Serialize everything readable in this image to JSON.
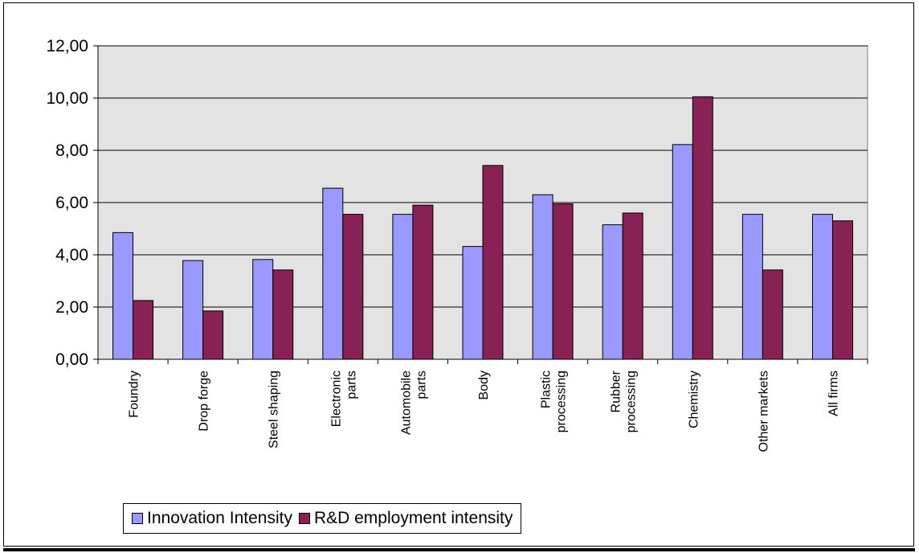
{
  "chart_data": {
    "type": "bar",
    "title": "",
    "xlabel": "",
    "ylabel": "",
    "ylim": [
      0,
      12
    ],
    "yticks": [
      "0,00",
      "2,00",
      "4,00",
      "6,00",
      "8,00",
      "10,00",
      "12,00"
    ],
    "ytick_values": [
      0,
      2,
      4,
      6,
      8,
      10,
      12
    ],
    "grid": true,
    "legend_position": "bottom-left",
    "categories": [
      [
        "Foundry"
      ],
      [
        "Drop forge"
      ],
      [
        "Steel shaping"
      ],
      [
        "Electronic",
        "parts"
      ],
      [
        "Automobile",
        "parts"
      ],
      [
        "Body"
      ],
      [
        "Plastic",
        "processing"
      ],
      [
        "Rubber",
        "processing"
      ],
      [
        "Chemistry"
      ],
      [
        "Other markets"
      ],
      [
        "All firms"
      ]
    ],
    "series": [
      {
        "name": "Innovation Intensity",
        "color": "#9999ff",
        "values": [
          4.85,
          3.78,
          3.82,
          6.55,
          5.55,
          4.32,
          6.3,
          5.15,
          8.22,
          5.55,
          5.55
        ]
      },
      {
        "name": "R&D employment intensity",
        "color": "#882255",
        "values": [
          2.25,
          1.85,
          3.42,
          5.55,
          5.9,
          7.42,
          5.95,
          5.6,
          10.05,
          3.42,
          5.3
        ]
      }
    ],
    "plot_background": "#e3e3e3"
  }
}
